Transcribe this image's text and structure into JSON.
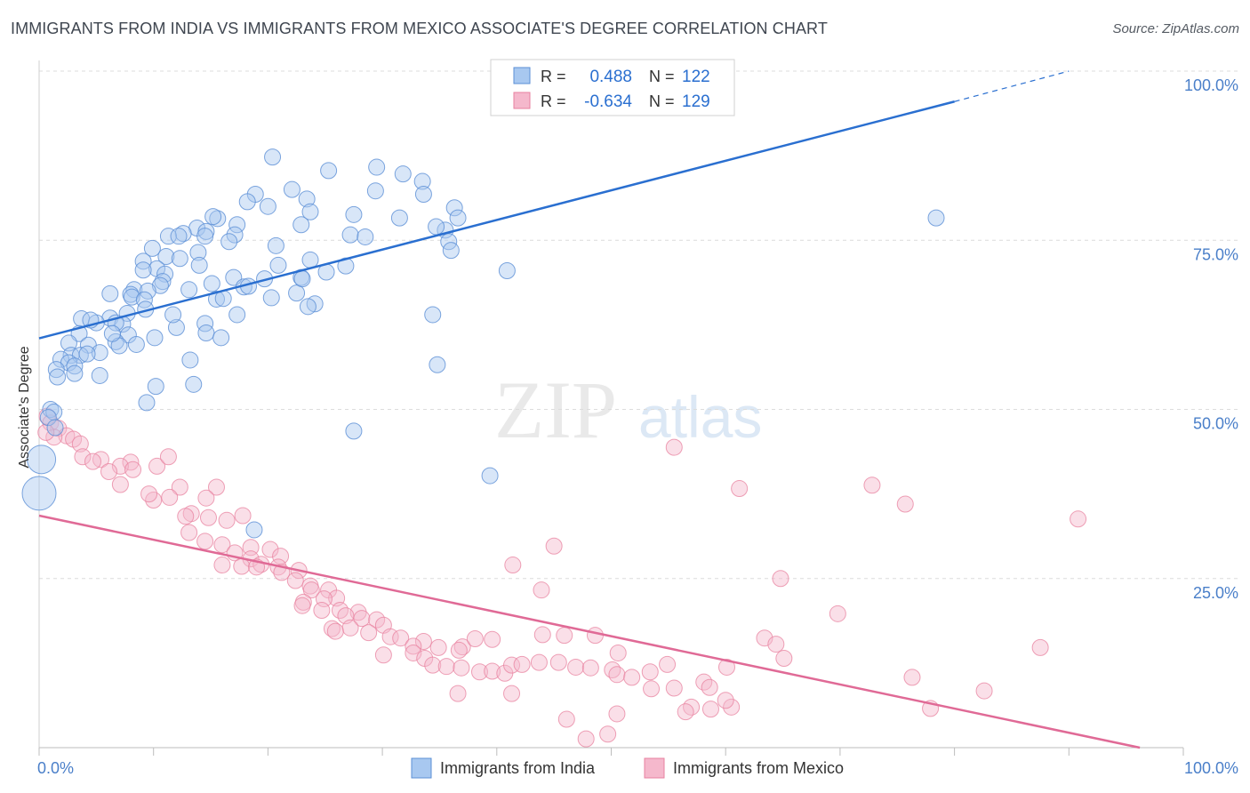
{
  "header": {
    "title": "IMMIGRANTS FROM INDIA VS IMMIGRANTS FROM MEXICO ASSOCIATE'S DEGREE CORRELATION CHART",
    "source": "Source: ZipAtlas.com"
  },
  "watermark": {
    "zip": "ZIP",
    "atlas": "atlas"
  },
  "colors": {
    "india_fill": "#a8c8f0",
    "india_stroke": "#5b8fd6",
    "india_line": "#2a6fd0",
    "mexico_fill": "#f5b8cc",
    "mexico_stroke": "#e8819f",
    "mexico_line": "#e06a96",
    "tick_label": "#4a7fc9",
    "grid": "#dcdcdc"
  },
  "legend_box": {
    "rows": [
      {
        "r_label": "R =",
        "r_value": "0.488",
        "n_label": "N =",
        "n_value": "122"
      },
      {
        "r_label": "R =",
        "r_value": "-0.634",
        "n_label": "N =",
        "n_value": "129"
      }
    ]
  },
  "chart_data": {
    "type": "scatter",
    "title": "IMMIGRANTS FROM INDIA VS IMMIGRANTS FROM MEXICO ASSOCIATE'S DEGREE CORRELATION CHART",
    "xlabel": "",
    "ylabel": "Associate's Degree",
    "xlim": [
      0,
      100
    ],
    "ylim": [
      0,
      100
    ],
    "x_tick_labels": [
      "0.0%",
      "100.0%"
    ],
    "y_tick_labels": [
      "25.0%",
      "50.0%",
      "75.0%",
      "100.0%"
    ],
    "y_ticks": [
      25,
      50,
      75,
      100
    ],
    "grid": true,
    "legend_position": "bottom",
    "series": [
      {
        "name": "Immigrants from India",
        "R": 0.488,
        "N": 122,
        "trend": {
          "x0": 0,
          "y0": 60.5,
          "x1": 80,
          "y1": 95.5,
          "dashed_to_x": 90,
          "dashed_to_y": 100
        },
        "points": [
          [
            20.4,
            87.3
          ],
          [
            25.3,
            85.3
          ],
          [
            29.5,
            85.8
          ],
          [
            31.8,
            84.8
          ],
          [
            33.5,
            83.7
          ],
          [
            22.1,
            82.5
          ],
          [
            23.4,
            81.1
          ],
          [
            29.4,
            82.3
          ],
          [
            33.6,
            81.8
          ],
          [
            18.9,
            81.8
          ],
          [
            20.0,
            80.0
          ],
          [
            18.2,
            80.7
          ],
          [
            23.7,
            79.2
          ],
          [
            27.5,
            78.8
          ],
          [
            31.5,
            78.3
          ],
          [
            36.3,
            79.8
          ],
          [
            36.6,
            78.3
          ],
          [
            15.6,
            78.2
          ],
          [
            15.2,
            78.5
          ],
          [
            17.3,
            77.3
          ],
          [
            22.9,
            77.3
          ],
          [
            13.8,
            76.8
          ],
          [
            14.6,
            76.3
          ],
          [
            12.6,
            76.0
          ],
          [
            17.1,
            75.8
          ],
          [
            14.5,
            75.6
          ],
          [
            11.3,
            75.6
          ],
          [
            27.2,
            75.8
          ],
          [
            28.5,
            75.5
          ],
          [
            35.5,
            76.5
          ],
          [
            16.6,
            74.8
          ],
          [
            35.8,
            74.8
          ],
          [
            36.0,
            73.5
          ],
          [
            9.9,
            73.8
          ],
          [
            13.9,
            73.2
          ],
          [
            11.1,
            72.6
          ],
          [
            12.3,
            72.3
          ],
          [
            23.7,
            72.1
          ],
          [
            9.1,
            71.9
          ],
          [
            14.0,
            71.3
          ],
          [
            26.8,
            71.2
          ],
          [
            20.9,
            71.3
          ],
          [
            40.9,
            70.5
          ],
          [
            10.3,
            70.8
          ],
          [
            11.0,
            70.0
          ],
          [
            17.0,
            69.5
          ],
          [
            19.7,
            69.3
          ],
          [
            22.9,
            69.5
          ],
          [
            10.8,
            68.9
          ],
          [
            10.6,
            68.3
          ],
          [
            15.1,
            68.6
          ],
          [
            17.9,
            68.1
          ],
          [
            18.3,
            68.2
          ],
          [
            6.2,
            67.1
          ],
          [
            8.3,
            67.7
          ],
          [
            9.5,
            67.5
          ],
          [
            8.0,
            67.0
          ],
          [
            8.1,
            66.6
          ],
          [
            13.1,
            67.7
          ],
          [
            20.3,
            66.5
          ],
          [
            22.5,
            67.2
          ],
          [
            15.5,
            66.3
          ],
          [
            9.2,
            66.2
          ],
          [
            24.1,
            65.6
          ],
          [
            23.5,
            65.2
          ],
          [
            34.4,
            64.0
          ],
          [
            9.3,
            64.8
          ],
          [
            7.7,
            64.2
          ],
          [
            6.2,
            63.5
          ],
          [
            17.3,
            64.0
          ],
          [
            3.7,
            63.4
          ],
          [
            5.0,
            62.8
          ],
          [
            4.5,
            63.2
          ],
          [
            7.3,
            62.6
          ],
          [
            6.7,
            62.8
          ],
          [
            14.5,
            62.7
          ],
          [
            12.0,
            62.1
          ],
          [
            3.5,
            61.2
          ],
          [
            14.6,
            61.3
          ],
          [
            7.8,
            61.0
          ],
          [
            10.1,
            60.6
          ],
          [
            15.9,
            60.6
          ],
          [
            6.7,
            60.0
          ],
          [
            2.6,
            59.8
          ],
          [
            4.3,
            59.5
          ],
          [
            8.5,
            59.6
          ],
          [
            7.0,
            59.4
          ],
          [
            5.3,
            58.4
          ],
          [
            2.8,
            58.0
          ],
          [
            3.6,
            58.0
          ],
          [
            1.9,
            57.4
          ],
          [
            13.2,
            57.3
          ],
          [
            2.6,
            56.9
          ],
          [
            3.1,
            56.4
          ],
          [
            34.8,
            56.6
          ],
          [
            1.5,
            55.9
          ],
          [
            1.6,
            54.8
          ],
          [
            5.3,
            55.0
          ],
          [
            10.2,
            53.4
          ],
          [
            13.5,
            53.7
          ],
          [
            9.4,
            51.0
          ],
          [
            1.0,
            50.0
          ],
          [
            1.3,
            49.6
          ],
          [
            0.8,
            48.8
          ],
          [
            1.4,
            47.3
          ],
          [
            27.5,
            46.8
          ],
          [
            39.4,
            40.2
          ],
          [
            18.8,
            32.2
          ],
          [
            78.4,
            78.3
          ],
          [
            0.2,
            42.6
          ],
          [
            0.0,
            37.6
          ],
          [
            9.1,
            70.6
          ],
          [
            12.2,
            75.6
          ],
          [
            20.7,
            74.2
          ],
          [
            25.1,
            70.3
          ],
          [
            34.7,
            77.0
          ],
          [
            6.4,
            61.2
          ],
          [
            11.7,
            64.0
          ],
          [
            4.2,
            58.2
          ],
          [
            3.1,
            55.3
          ],
          [
            23.0,
            69.3
          ],
          [
            16.1,
            66.4
          ]
        ],
        "point_radius_note": "small points except two large points near x=0"
      },
      {
        "name": "Immigrants from Mexico",
        "R": -0.634,
        "N": 129,
        "trend": {
          "x0": 0,
          "y0": 34.3,
          "x1": 96.2,
          "y1": 0
        },
        "points": [
          [
            0.7,
            49.0
          ],
          [
            1.0,
            48.0
          ],
          [
            1.7,
            47.2
          ],
          [
            2.4,
            46.1
          ],
          [
            3.0,
            45.6
          ],
          [
            1.3,
            45.9
          ],
          [
            0.6,
            46.6
          ],
          [
            3.6,
            44.9
          ],
          [
            3.8,
            43.0
          ],
          [
            5.4,
            42.6
          ],
          [
            8.0,
            42.2
          ],
          [
            7.1,
            41.6
          ],
          [
            8.2,
            41.1
          ],
          [
            6.1,
            40.8
          ],
          [
            4.7,
            42.3
          ],
          [
            10.3,
            41.6
          ],
          [
            11.3,
            43.0
          ],
          [
            7.1,
            38.9
          ],
          [
            12.3,
            38.5
          ],
          [
            11.4,
            37.0
          ],
          [
            15.5,
            38.5
          ],
          [
            14.6,
            36.9
          ],
          [
            10.0,
            36.6
          ],
          [
            9.6,
            37.5
          ],
          [
            13.3,
            34.6
          ],
          [
            14.8,
            34.0
          ],
          [
            16.4,
            33.6
          ],
          [
            17.8,
            34.3
          ],
          [
            12.8,
            34.2
          ],
          [
            13.1,
            31.8
          ],
          [
            14.5,
            30.5
          ],
          [
            16.0,
            30.0
          ],
          [
            18.5,
            29.6
          ],
          [
            20.2,
            29.3
          ],
          [
            17.1,
            28.8
          ],
          [
            18.5,
            27.9
          ],
          [
            19.4,
            27.1
          ],
          [
            21.1,
            28.3
          ],
          [
            16.0,
            27.0
          ],
          [
            17.7,
            26.8
          ],
          [
            19.0,
            26.7
          ],
          [
            20.9,
            26.7
          ],
          [
            21.2,
            25.9
          ],
          [
            22.7,
            26.2
          ],
          [
            22.4,
            24.7
          ],
          [
            23.7,
            23.9
          ],
          [
            23.8,
            23.3
          ],
          [
            25.3,
            23.3
          ],
          [
            26.0,
            22.1
          ],
          [
            24.9,
            22.0
          ],
          [
            23.1,
            21.5
          ],
          [
            23.0,
            21.0
          ],
          [
            24.7,
            20.3
          ],
          [
            26.3,
            20.3
          ],
          [
            27.9,
            20.0
          ],
          [
            26.8,
            19.5
          ],
          [
            28.2,
            19.1
          ],
          [
            29.5,
            18.9
          ],
          [
            30.1,
            18.1
          ],
          [
            27.2,
            17.7
          ],
          [
            25.6,
            17.6
          ],
          [
            25.9,
            17.2
          ],
          [
            28.8,
            17.0
          ],
          [
            30.7,
            16.4
          ],
          [
            31.6,
            16.2
          ],
          [
            33.6,
            15.7
          ],
          [
            32.7,
            15.0
          ],
          [
            34.9,
            14.8
          ],
          [
            37.0,
            14.9
          ],
          [
            36.7,
            14.4
          ],
          [
            32.7,
            14.0
          ],
          [
            30.1,
            13.7
          ],
          [
            33.7,
            13.2
          ],
          [
            34.4,
            12.2
          ],
          [
            35.6,
            12.0
          ],
          [
            36.9,
            11.8
          ],
          [
            38.5,
            11.2
          ],
          [
            39.6,
            11.3
          ],
          [
            40.7,
            11.0
          ],
          [
            41.3,
            12.2
          ],
          [
            42.2,
            12.3
          ],
          [
            43.7,
            12.6
          ],
          [
            45.4,
            12.6
          ],
          [
            46.9,
            11.9
          ],
          [
            48.2,
            11.8
          ],
          [
            50.1,
            11.5
          ],
          [
            50.5,
            10.8
          ],
          [
            51.8,
            10.4
          ],
          [
            53.4,
            11.2
          ],
          [
            38.1,
            16.1
          ],
          [
            39.6,
            16.0
          ],
          [
            44.0,
            16.7
          ],
          [
            45.9,
            16.6
          ],
          [
            48.6,
            16.6
          ],
          [
            50.6,
            14.0
          ],
          [
            54.9,
            12.3
          ],
          [
            55.5,
            8.8
          ],
          [
            53.5,
            8.7
          ],
          [
            58.1,
            9.7
          ],
          [
            58.6,
            8.9
          ],
          [
            60.1,
            11.9
          ],
          [
            57.0,
            6.0
          ],
          [
            56.5,
            5.3
          ],
          [
            60.5,
            6.0
          ],
          [
            58.7,
            5.7
          ],
          [
            46.1,
            4.2
          ],
          [
            47.8,
            1.3
          ],
          [
            49.7,
            2.0
          ],
          [
            50.5,
            5.0
          ],
          [
            36.6,
            8.0
          ],
          [
            41.3,
            8.0
          ],
          [
            60.0,
            7.0
          ],
          [
            63.4,
            16.2
          ],
          [
            64.4,
            15.3
          ],
          [
            64.8,
            25.0
          ],
          [
            65.1,
            13.2
          ],
          [
            72.8,
            38.8
          ],
          [
            75.7,
            36.0
          ],
          [
            69.8,
            19.8
          ],
          [
            77.9,
            5.8
          ],
          [
            76.3,
            10.4
          ],
          [
            82.6,
            8.4
          ],
          [
            87.5,
            14.8
          ],
          [
            90.8,
            33.8
          ],
          [
            55.5,
            44.4
          ],
          [
            61.2,
            38.3
          ],
          [
            45.0,
            29.8
          ],
          [
            41.4,
            27.0
          ],
          [
            43.9,
            23.3
          ]
        ],
        "point_radius_note": "small points"
      }
    ]
  }
}
